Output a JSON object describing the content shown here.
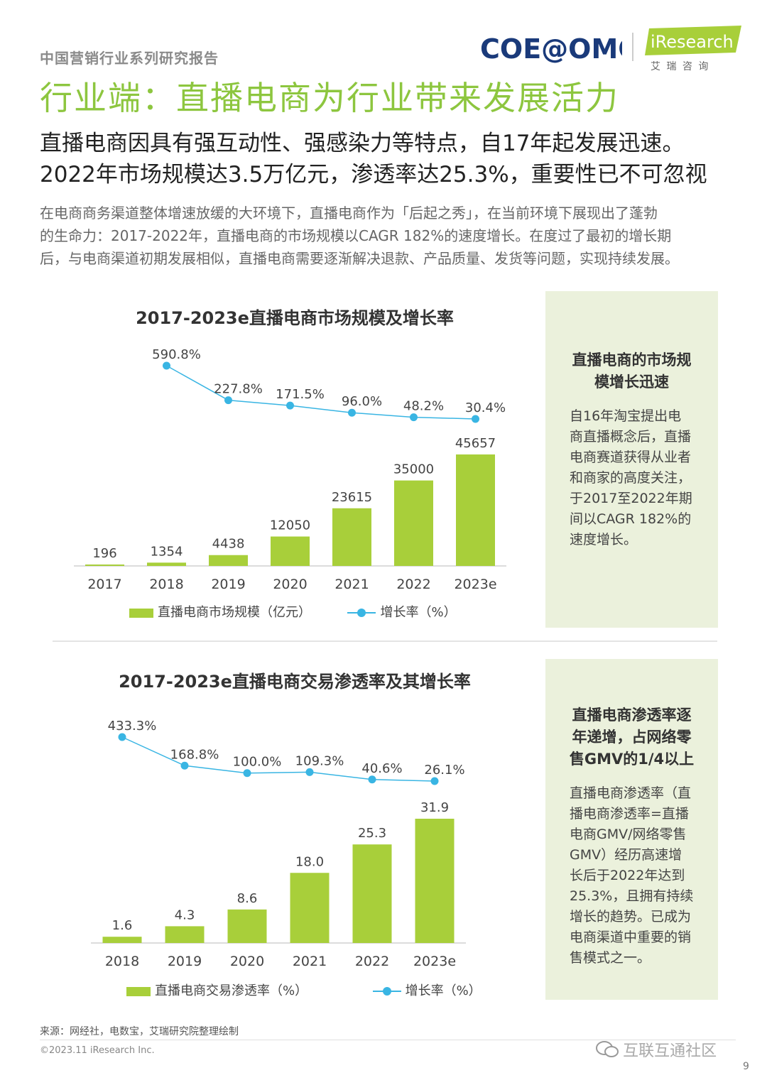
{
  "header": {
    "series": "中国营销行业系列研究报告",
    "logo_coe": "COE@OMG",
    "logo_iresearch": "iResearch",
    "logo_iresearch_cn": "艾 瑞 咨 询"
  },
  "title": "行业端：直播电商为行业带来发展活力",
  "subtitle_line1": "直播电商因具有强互动性、强感染力等特点，自17年起发展迅速。",
  "subtitle_line2": "2022年市场规模达3.5万亿元，渗透率达25.3%，重要性已不可忽视",
  "body": [
    "在电商商务渠道整体增速放缓的大环境下，直播电商作为「后起之秀」，在当前环境下展现出了蓬勃",
    "的生命力：2017-2022年，直播电商的市场规模以CAGR 182%的速度增长。在度过了最初的增长期",
    "后，与电商渠道初期发展相似，直播电商需要逐渐解决退款、产品质量、发货等问题，实现持续发展。"
  ],
  "side1": {
    "heading": [
      "直播电商的市场规",
      "模增长迅速"
    ],
    "text": [
      "自16年淘宝提出电",
      "商直播概念后，直播",
      "电商赛道获得从业者",
      "和商家的高度关注，",
      "于2017至2022年期",
      "间以CAGR 182%的",
      "速度增长。"
    ]
  },
  "side2": {
    "heading": [
      "直播电商渗透率逐",
      "年递增，占网络零",
      "售GMV的1/4以上"
    ],
    "text": [
      "直播电商渗透率（直",
      "播电商渗透率=直播",
      "电商GMV/网络零售",
      "GMV）经历高速增",
      "长后于2022年达到",
      "25.3%，且拥有持续",
      "增长的趋势。已成为",
      "电商渠道中重要的销",
      "售模式之一。"
    ]
  },
  "colors": {
    "bar": "#a8cf3a",
    "line": "#39b5e3",
    "title_green": "#8dc63f"
  },
  "chart_data": [
    {
      "type": "bar",
      "title": "2017-2023e直播电商市场规模及增长率",
      "categories": [
        "2017",
        "2018",
        "2019",
        "2020",
        "2021",
        "2022",
        "2023e"
      ],
      "series": [
        {
          "name": "直播电商市场规模（亿元）",
          "type": "bar",
          "values": [
            196,
            1354,
            4438,
            12050,
            23615,
            35000,
            45657
          ],
          "labels": [
            "196",
            "1354",
            "4438",
            "12050",
            "23615",
            "35000",
            "45657"
          ]
        },
        {
          "name": "增长率（%）",
          "type": "line",
          "values": [
            null,
            590.8,
            227.8,
            171.5,
            96.0,
            48.2,
            30.4
          ],
          "labels": [
            "",
            "590.8%",
            "227.8%",
            "171.5%",
            "96.0%",
            "48.2%",
            "30.4%"
          ]
        }
      ],
      "legend": "bottom"
    },
    {
      "type": "bar",
      "title": "2017-2023e直播电商交易渗透率及其增长率",
      "categories": [
        "2018",
        "2019",
        "2020",
        "2021",
        "2022",
        "2023e"
      ],
      "series": [
        {
          "name": "直播电商交易渗透率（%）",
          "type": "bar",
          "values": [
            1.6,
            4.3,
            8.6,
            18.0,
            25.3,
            31.9
          ],
          "labels": [
            "1.6",
            "4.3",
            "8.6",
            "18.0",
            "25.3",
            "31.9"
          ]
        },
        {
          "name": "增长率（%）",
          "type": "line",
          "values": [
            433.3,
            168.8,
            100.0,
            109.3,
            40.6,
            26.1
          ],
          "labels": [
            "433.3%",
            "168.8%",
            "100.0%",
            "109.3%",
            "40.6%",
            "26.1%"
          ]
        }
      ],
      "legend": "bottom"
    }
  ],
  "legend1": {
    "bar": "直播电商市场规模（亿元）",
    "line": "增长率（%）"
  },
  "legend2": {
    "bar": "直播电商交易渗透率（%）",
    "line": "增长率（%）"
  },
  "footer": {
    "source": "来源：网经社，电数宝，艾瑞研究院整理绘制",
    "copyright": "©2023.11 iResearch Inc.",
    "watermark": "互联互通社区",
    "page": "9"
  }
}
